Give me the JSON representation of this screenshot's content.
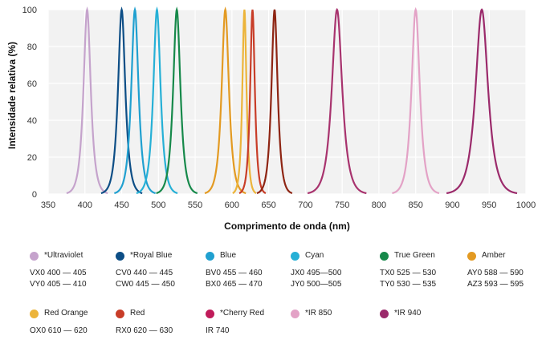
{
  "chart_data": {
    "type": "line",
    "xlabel": "Comprimento de onda (nm)",
    "ylabel": "Intensidade relativa (%)",
    "xlim": [
      350,
      1000
    ],
    "ylim": [
      0,
      100
    ],
    "x_ticks": [
      350,
      400,
      450,
      500,
      550,
      600,
      650,
      700,
      750,
      800,
      850,
      900,
      950,
      1000
    ],
    "y_ticks": [
      0,
      20,
      40,
      60,
      80,
      100
    ],
    "grid": true,
    "background": "#f2f2f2",
    "grid_color": "#ffffff",
    "series": [
      {
        "color": "#c5a3cc",
        "peak": 403,
        "halfwidth": 7
      },
      {
        "color": "#0d4e86",
        "peak": 450,
        "halfwidth": 7
      },
      {
        "color": "#20a0d0",
        "peak": 468,
        "halfwidth": 7
      },
      {
        "color": "#26b0d6",
        "peak": 498,
        "halfwidth": 7
      },
      {
        "color": "#16894a",
        "peak": 525,
        "halfwidth": 7
      },
      {
        "color": "#e39a22",
        "peak": 591,
        "halfwidth": 7
      },
      {
        "color": "#ecb43a",
        "peak": 617,
        "halfwidth": 4
      },
      {
        "color": "#c83d28",
        "peak": 628,
        "halfwidth": 4.5
      },
      {
        "color": "#8e2513",
        "peak": 658,
        "halfwidth": 6
      },
      {
        "color": "#a8336e",
        "peak": 743,
        "halfwidth": 10
      },
      {
        "color": "#e3a2c6",
        "peak": 850,
        "halfwidth": 8
      },
      {
        "color": "#9b2a6b",
        "peak": 940,
        "halfwidth": 12
      }
    ]
  },
  "legend": [
    {
      "name": "*Ultraviolet",
      "color": "#c5a3cc",
      "codes": [
        "VX0  400 — 405",
        "VY0  405 — 410"
      ]
    },
    {
      "name": "*Royal Blue",
      "color": "#0d4e86",
      "codes": [
        "CV0  440 — 445",
        "CW0  445 — 450"
      ]
    },
    {
      "name": "Blue",
      "color": "#20a0d0",
      "codes": [
        "BV0  455 — 460",
        "BX0  465 — 470"
      ]
    },
    {
      "name": "Cyan",
      "color": "#26b0d6",
      "codes": [
        "JX0  495—500",
        "JY0  500—505"
      ]
    },
    {
      "name": "True Green",
      "color": "#16894a",
      "codes": [
        "TX0  525 — 530",
        "TY0  530 — 535"
      ]
    },
    {
      "name": "Amber",
      "color": "#e39a22",
      "codes": [
        "AY0  588 — 590",
        "AZ3  593 — 595"
      ]
    },
    {
      "name": "Red Orange",
      "color": "#ecb43a",
      "codes": [
        "OX0 610 — 620"
      ]
    },
    {
      "name": "Red",
      "color": "#c83d28",
      "codes": [
        "RX0 620 — 630"
      ]
    },
    {
      "name": "*Cherry Red",
      "color": "#c01b5a",
      "codes": [
        "IR 740"
      ]
    },
    {
      "name": "*IR 850",
      "color": "#e3a2c6",
      "codes": []
    },
    {
      "name": "*IR 940",
      "color": "#9b2a6b",
      "codes": []
    }
  ]
}
